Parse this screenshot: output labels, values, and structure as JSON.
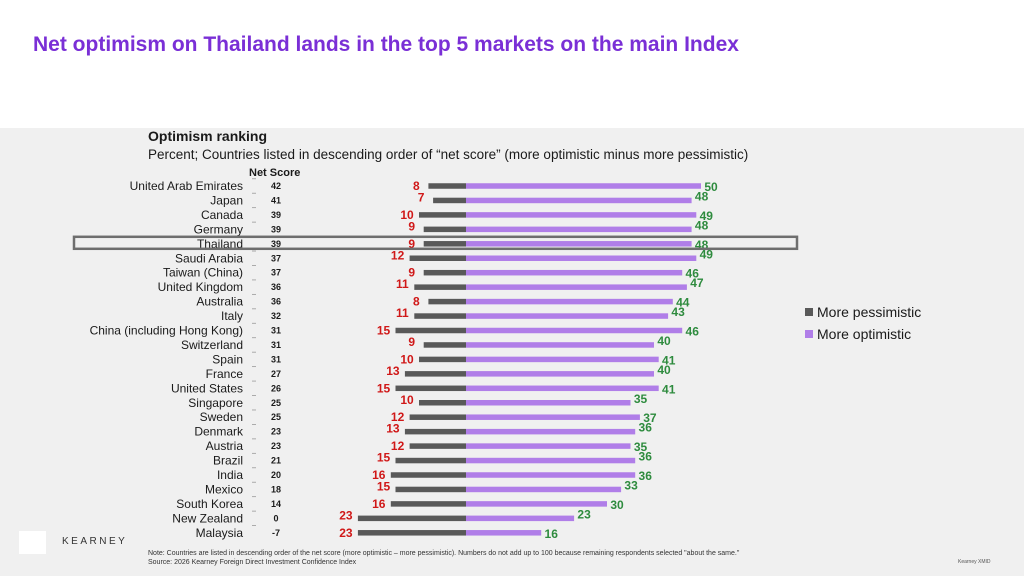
{
  "slide": {
    "title": "Net optimism on Thailand lands in the top 5 markets on the main Index",
    "logo": "KEARNEY",
    "corner_id": "Kearney XMID",
    "note": "Note: Countries are listed in descending order of the net score (more optimistic – more pessimistic). Numbers do not add up to 100 because remaining respondents selected \"about the same.\"",
    "source": "Source: 2026 Kearney Foreign Direct Investment Confidence Index"
  },
  "chart_data": {
    "type": "bar",
    "orientation": "horizontal-diverging",
    "title": "Optimism ranking",
    "subtitle": "Percent; Countries listed in descending order of “net score” (more optimistic minus more pessimistic)",
    "net_score_header": "Net Score",
    "highlight": "Thailand",
    "legend_position": "right",
    "categories": [
      "United Arab Emirates",
      "Japan",
      "Canada",
      "Germany",
      "Thailand",
      "Saudi Arabia",
      "Taiwan (China)",
      "United Kingdom",
      "Australia",
      "Italy",
      "China (including Hong Kong)",
      "Switzerland",
      "Spain",
      "France",
      "United States",
      "Singapore",
      "Sweden",
      "Denmark",
      "Austria",
      "Brazil",
      "India",
      "Mexico",
      "South Korea",
      "New Zealand",
      "Malaysia"
    ],
    "net_score": [
      42,
      41,
      39,
      39,
      39,
      37,
      37,
      36,
      36,
      32,
      31,
      31,
      31,
      27,
      26,
      25,
      25,
      23,
      23,
      21,
      20,
      18,
      14,
      0,
      -7
    ],
    "series": [
      {
        "name": "More pessimistic",
        "color": "#595959",
        "label_color": "#d01818",
        "values": [
          8,
          7,
          10,
          9,
          9,
          12,
          9,
          11,
          8,
          11,
          15,
          9,
          10,
          13,
          15,
          10,
          12,
          13,
          12,
          15,
          16,
          15,
          16,
          23,
          23
        ]
      },
      {
        "name": "More optimistic",
        "color": "#b07ee8",
        "label_color": "#2e8b3e",
        "values": [
          50,
          48,
          49,
          48,
          48,
          49,
          46,
          47,
          44,
          43,
          46,
          40,
          41,
          40,
          41,
          35,
          37,
          36,
          35,
          36,
          36,
          33,
          30,
          23,
          16
        ]
      }
    ]
  }
}
